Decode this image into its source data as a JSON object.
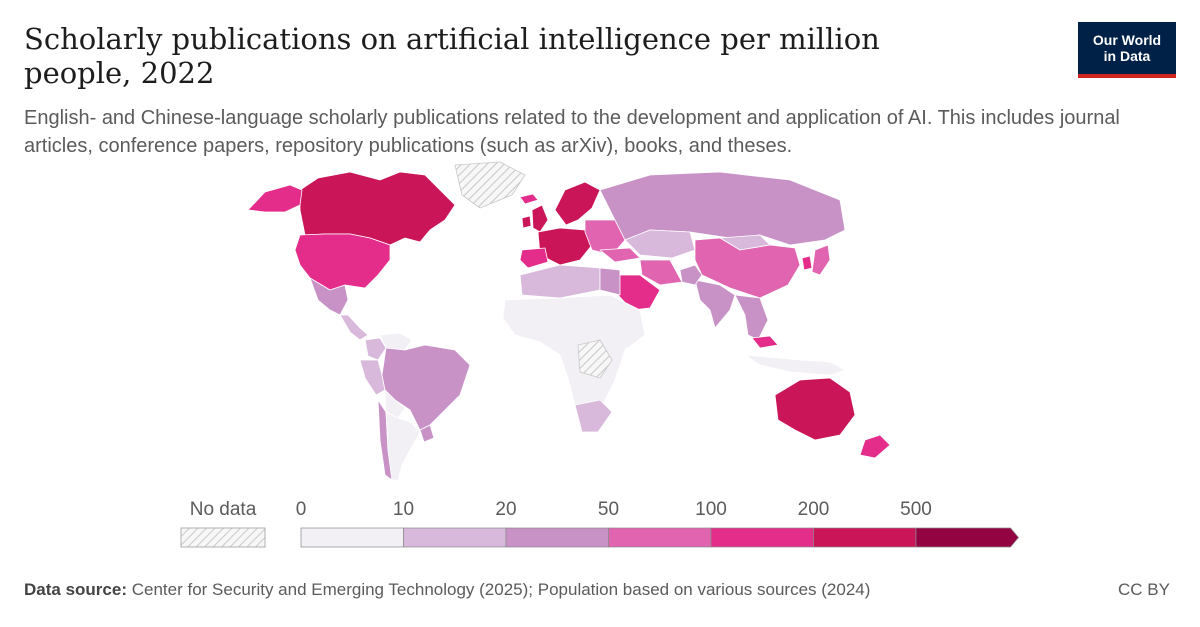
{
  "header": {
    "title": "Scholarly publications on artificial intelligence per million people, 2022",
    "subtitle": "English- and Chinese-language scholarly publications related to the development and application of AI. This includes journal articles, conference papers, repository publications (such as arXiv), books, and theses.",
    "logo_line1": "Our World",
    "logo_line2": "in Data"
  },
  "legend": {
    "no_data_label": "No data",
    "bins": [
      {
        "label": "0",
        "color": "#f2eff5"
      },
      {
        "label": "10",
        "color": "#d8b9db"
      },
      {
        "label": "20",
        "color": "#c892c7"
      },
      {
        "label": "50",
        "color": "#e064b0"
      },
      {
        "label": "100",
        "color": "#e42c8a"
      },
      {
        "label": "200",
        "color": "#ca1559"
      },
      {
        "label": "500",
        "color": "#930241"
      }
    ]
  },
  "footer": {
    "source_label": "Data source:",
    "source_text": "Center for Security and Emerging Technology (2025); Population based on various sources (2024)",
    "license": "CC BY"
  },
  "chart_data": {
    "type": "map",
    "metric": "Scholarly publications on artificial intelligence per million people",
    "year": 2022,
    "scale_breaks": [
      0,
      10,
      20,
      50,
      100,
      200,
      500
    ],
    "regions": [
      {
        "name": "Canada",
        "bin": "200-500",
        "color": "#ca1559"
      },
      {
        "name": "Alaska",
        "bin": "100-200",
        "color": "#e42c8a"
      },
      {
        "name": "United States",
        "bin": "100-200",
        "color": "#e42c8a"
      },
      {
        "name": "Mexico",
        "bin": "20-50",
        "color": "#c892c7"
      },
      {
        "name": "Central America",
        "bin": "10-20",
        "color": "#d8b9db"
      },
      {
        "name": "Colombia",
        "bin": "10-20",
        "color": "#d8b9db"
      },
      {
        "name": "Venezuela",
        "bin": "0-10",
        "color": "#f2eff5"
      },
      {
        "name": "Peru",
        "bin": "10-20",
        "color": "#d8b9db"
      },
      {
        "name": "Brazil",
        "bin": "20-50",
        "color": "#c892c7"
      },
      {
        "name": "Bolivia",
        "bin": "0-10",
        "color": "#f2eff5"
      },
      {
        "name": "Chile",
        "bin": "20-50",
        "color": "#c892c7"
      },
      {
        "name": "Argentina",
        "bin": "0-10",
        "color": "#f2eff5"
      },
      {
        "name": "Uruguay",
        "bin": "20-50",
        "color": "#c892c7"
      },
      {
        "name": "Greenland",
        "bin": "No data",
        "color": "nodata"
      },
      {
        "name": "Iceland",
        "bin": "100-200",
        "color": "#e42c8a"
      },
      {
        "name": "United Kingdom",
        "bin": "200-500",
        "color": "#ca1559"
      },
      {
        "name": "Ireland",
        "bin": "200-500",
        "color": "#ca1559"
      },
      {
        "name": "Scandinavia",
        "bin": "200-500",
        "color": "#ca1559"
      },
      {
        "name": "Western Europe",
        "bin": "200-500",
        "color": "#ca1559"
      },
      {
        "name": "Spain / Portugal",
        "bin": "100-200",
        "color": "#e42c8a"
      },
      {
        "name": "Eastern Europe",
        "bin": "50-100",
        "color": "#e064b0"
      },
      {
        "name": "Russia",
        "bin": "20-50",
        "color": "#c892c7"
      },
      {
        "name": "Kazakhstan",
        "bin": "10-20",
        "color": "#d8b9db"
      },
      {
        "name": "Mongolia",
        "bin": "10-20",
        "color": "#d8b9db"
      },
      {
        "name": "China",
        "bin": "50-100",
        "color": "#e064b0"
      },
      {
        "name": "South Korea",
        "bin": "100-200",
        "color": "#e42c8a"
      },
      {
        "name": "Japan",
        "bin": "50-100",
        "color": "#e064b0"
      },
      {
        "name": "India",
        "bin": "20-50",
        "color": "#c892c7"
      },
      {
        "name": "Pakistan",
        "bin": "20-50",
        "color": "#c892c7"
      },
      {
        "name": "Iran",
        "bin": "50-100",
        "color": "#e064b0"
      },
      {
        "name": "Turkey",
        "bin": "50-100",
        "color": "#e064b0"
      },
      {
        "name": "Saudi Arabia",
        "bin": "100-200",
        "color": "#e42c8a"
      },
      {
        "name": "Southeast Asia",
        "bin": "20-50",
        "color": "#c892c7"
      },
      {
        "name": "Malaysia",
        "bin": "100-200",
        "color": "#e42c8a"
      },
      {
        "name": "Indonesia",
        "bin": "0-10",
        "color": "#f2eff5"
      },
      {
        "name": "Australia",
        "bin": "200-500",
        "color": "#ca1559"
      },
      {
        "name": "New Zealand",
        "bin": "100-200",
        "color": "#e42c8a"
      },
      {
        "name": "North Africa",
        "bin": "10-20",
        "color": "#d8b9db"
      },
      {
        "name": "Egypt",
        "bin": "20-50",
        "color": "#c892c7"
      },
      {
        "name": "Sub-Saharan Africa",
        "bin": "0-10",
        "color": "#f2eff5"
      },
      {
        "name": "Central Africa",
        "bin": "No data",
        "color": "nodata"
      },
      {
        "name": "South Africa",
        "bin": "10-20",
        "color": "#d8b9db"
      }
    ]
  }
}
